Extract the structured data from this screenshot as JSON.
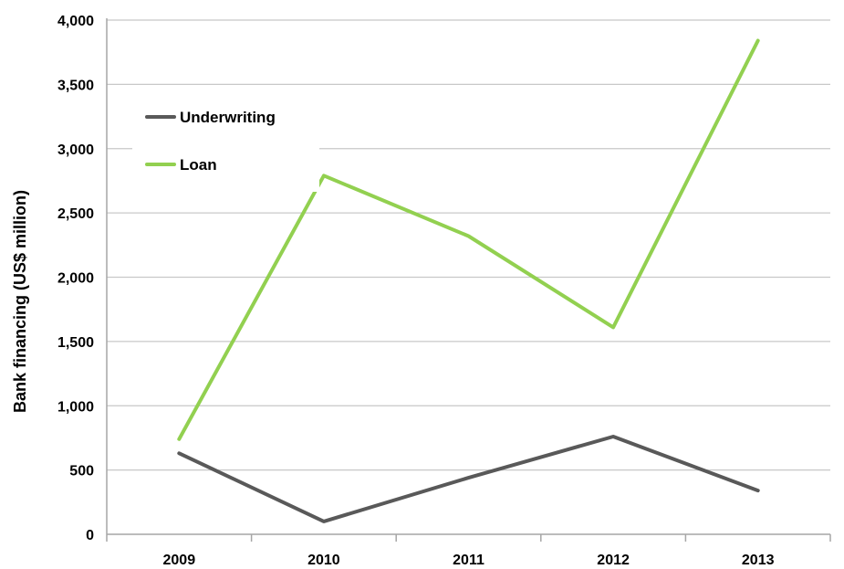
{
  "chart_data": {
    "type": "line",
    "title": "",
    "xlabel": "",
    "ylabel": "Bank financing (US$ million)",
    "categories": [
      "2009",
      "2010",
      "2011",
      "2012",
      "2013"
    ],
    "ylim": [
      0,
      4000
    ],
    "yticks": [
      0,
      500,
      1000,
      1500,
      2000,
      2500,
      3000,
      3500,
      4000
    ],
    "ytick_labels": [
      "0",
      "500",
      "1,000",
      "1,500",
      "2,000",
      "2,500",
      "3,000",
      "3,500",
      "4,000"
    ],
    "grid": true,
    "legend_position": "top-left",
    "series": [
      {
        "name": "Underwriting",
        "color": "#595959",
        "values": [
          630,
          100,
          440,
          760,
          340
        ]
      },
      {
        "name": "Loan",
        "color": "#92d050",
        "values": [
          740,
          2790,
          2320,
          1610,
          3840
        ]
      }
    ]
  }
}
